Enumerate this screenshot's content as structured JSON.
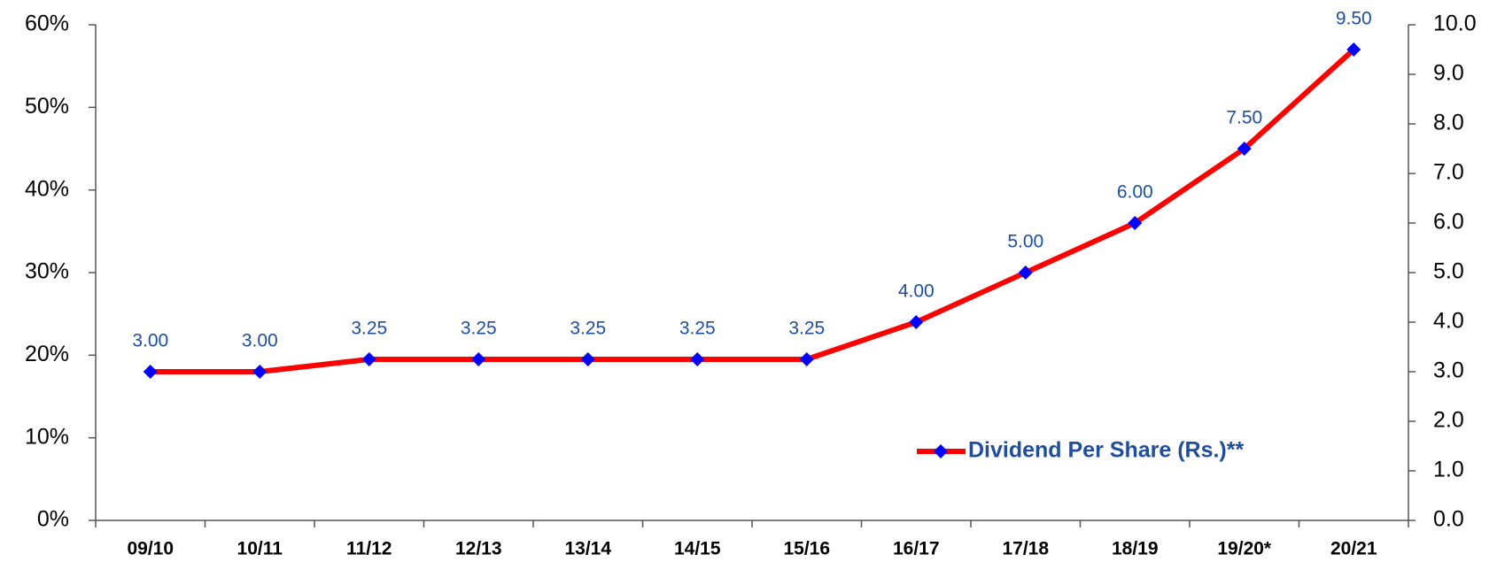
{
  "chart_data": {
    "type": "line",
    "categories": [
      "09/10",
      "10/11",
      "11/12",
      "12/13",
      "13/14",
      "14/15",
      "15/16",
      "16/17",
      "17/18",
      "18/19",
      "19/20*",
      "20/21"
    ],
    "series": [
      {
        "name": "Dividend Per Share (Rs.)**",
        "color": "#ff0000",
        "marker_color": "#0000ff",
        "axis": "y2",
        "values": [
          3.0,
          3.0,
          3.25,
          3.25,
          3.25,
          3.25,
          3.25,
          4.0,
          5.0,
          6.0,
          7.5,
          9.5
        ],
        "value_labels": [
          "3.00",
          "3.00",
          "3.25",
          "3.25",
          "3.25",
          "3.25",
          "3.25",
          "4.00",
          "5.00",
          "6.00",
          "7.50",
          "9.50"
        ]
      }
    ],
    "ylim": [
      0,
      60
    ],
    "yticks": [
      {
        "value": 0,
        "label": "0%"
      },
      {
        "value": 10,
        "label": "10%"
      },
      {
        "value": 20,
        "label": "20%"
      },
      {
        "value": 30,
        "label": "30%"
      },
      {
        "value": 40,
        "label": "40%"
      },
      {
        "value": 50,
        "label": "50%"
      },
      {
        "value": 60,
        "label": "60%"
      }
    ],
    "y2lim": [
      0,
      10
    ],
    "y2ticks": [
      {
        "value": 0,
        "label": "0.0"
      },
      {
        "value": 1,
        "label": "1.0"
      },
      {
        "value": 2,
        "label": "2.0"
      },
      {
        "value": 3,
        "label": "3.0"
      },
      {
        "value": 4,
        "label": "4.0"
      },
      {
        "value": 5,
        "label": "5.0"
      },
      {
        "value": 6,
        "label": "6.0"
      },
      {
        "value": 7,
        "label": "7.0"
      },
      {
        "value": 8,
        "label": "8.0"
      },
      {
        "value": 9,
        "label": "9.0"
      },
      {
        "value": 10,
        "label": "10.0"
      }
    ],
    "legend": "lower right",
    "grid": false
  }
}
